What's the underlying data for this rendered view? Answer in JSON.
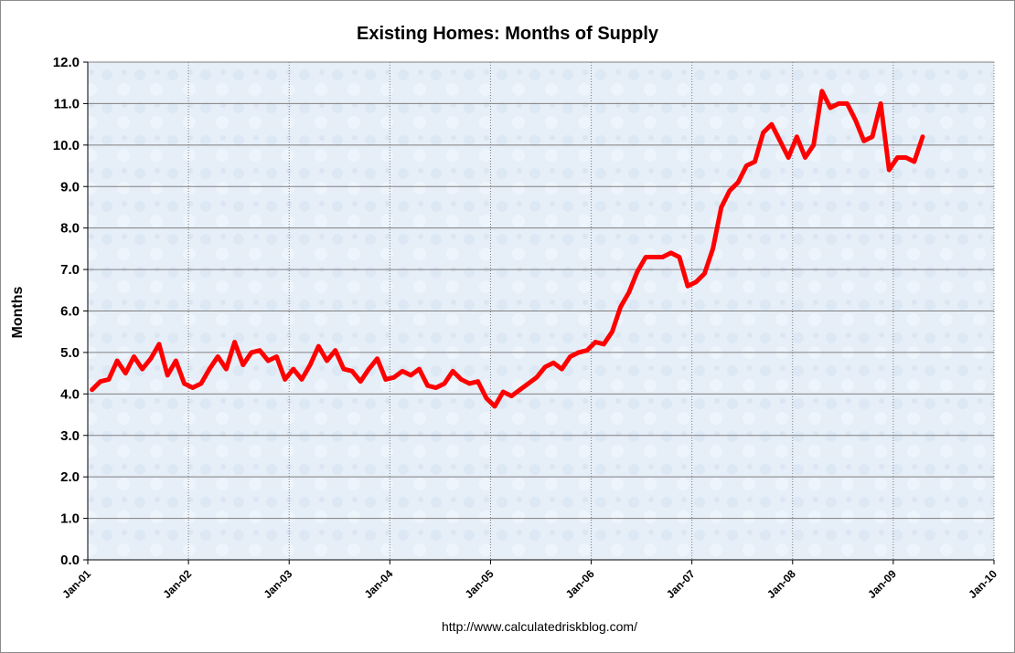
{
  "chart_data": {
    "type": "line",
    "title": "Existing Homes: Months of Supply",
    "xlabel": "",
    "ylabel": "Months",
    "source": "http://www.calculatedriskblog.com/",
    "ylim": [
      0,
      12
    ],
    "yticks": [
      "0.0",
      "1.0",
      "2.0",
      "3.0",
      "4.0",
      "5.0",
      "6.0",
      "7.0",
      "8.0",
      "9.0",
      "10.0",
      "11.0",
      "12.0"
    ],
    "xticks": [
      "Jan-01",
      "Jan-02",
      "Jan-03",
      "Jan-04",
      "Jan-05",
      "Jan-06",
      "Jan-07",
      "Jan-08",
      "Jan-09",
      "Jan-10"
    ],
    "x_start": "Jan-01",
    "x_unit": "months since Jan-01",
    "grid": true,
    "line_color": "#ff0000",
    "plot_background": "#e8f0fa",
    "series": [
      {
        "name": "Months of Supply",
        "values": [
          4.1,
          4.3,
          4.35,
          4.8,
          4.5,
          4.9,
          4.6,
          4.85,
          5.2,
          4.45,
          4.8,
          4.25,
          4.15,
          4.25,
          4.6,
          4.9,
          4.6,
          5.25,
          4.7,
          5.0,
          5.05,
          4.8,
          4.9,
          4.35,
          4.6,
          4.35,
          4.7,
          5.15,
          4.8,
          5.05,
          4.6,
          4.55,
          4.3,
          4.6,
          4.85,
          4.35,
          4.4,
          4.55,
          4.45,
          4.6,
          4.2,
          4.15,
          4.25,
          4.55,
          4.35,
          4.25,
          4.3,
          3.9,
          3.7,
          4.05,
          3.95,
          4.1,
          4.25,
          4.4,
          4.65,
          4.75,
          4.6,
          4.9,
          5.0,
          5.05,
          5.25,
          5.2,
          5.5,
          6.1,
          6.45,
          6.95,
          7.3,
          7.3,
          7.3,
          7.4,
          7.3,
          6.6,
          6.7,
          6.9,
          7.5,
          8.5,
          8.9,
          9.1,
          9.5,
          9.6,
          10.3,
          10.5,
          10.1,
          9.7,
          10.2,
          9.7,
          10.0,
          11.3,
          10.9,
          11.0,
          11.0,
          10.6,
          10.1,
          10.2,
          11.0,
          9.4,
          9.7,
          9.7,
          9.6,
          10.2
        ]
      }
    ]
  }
}
